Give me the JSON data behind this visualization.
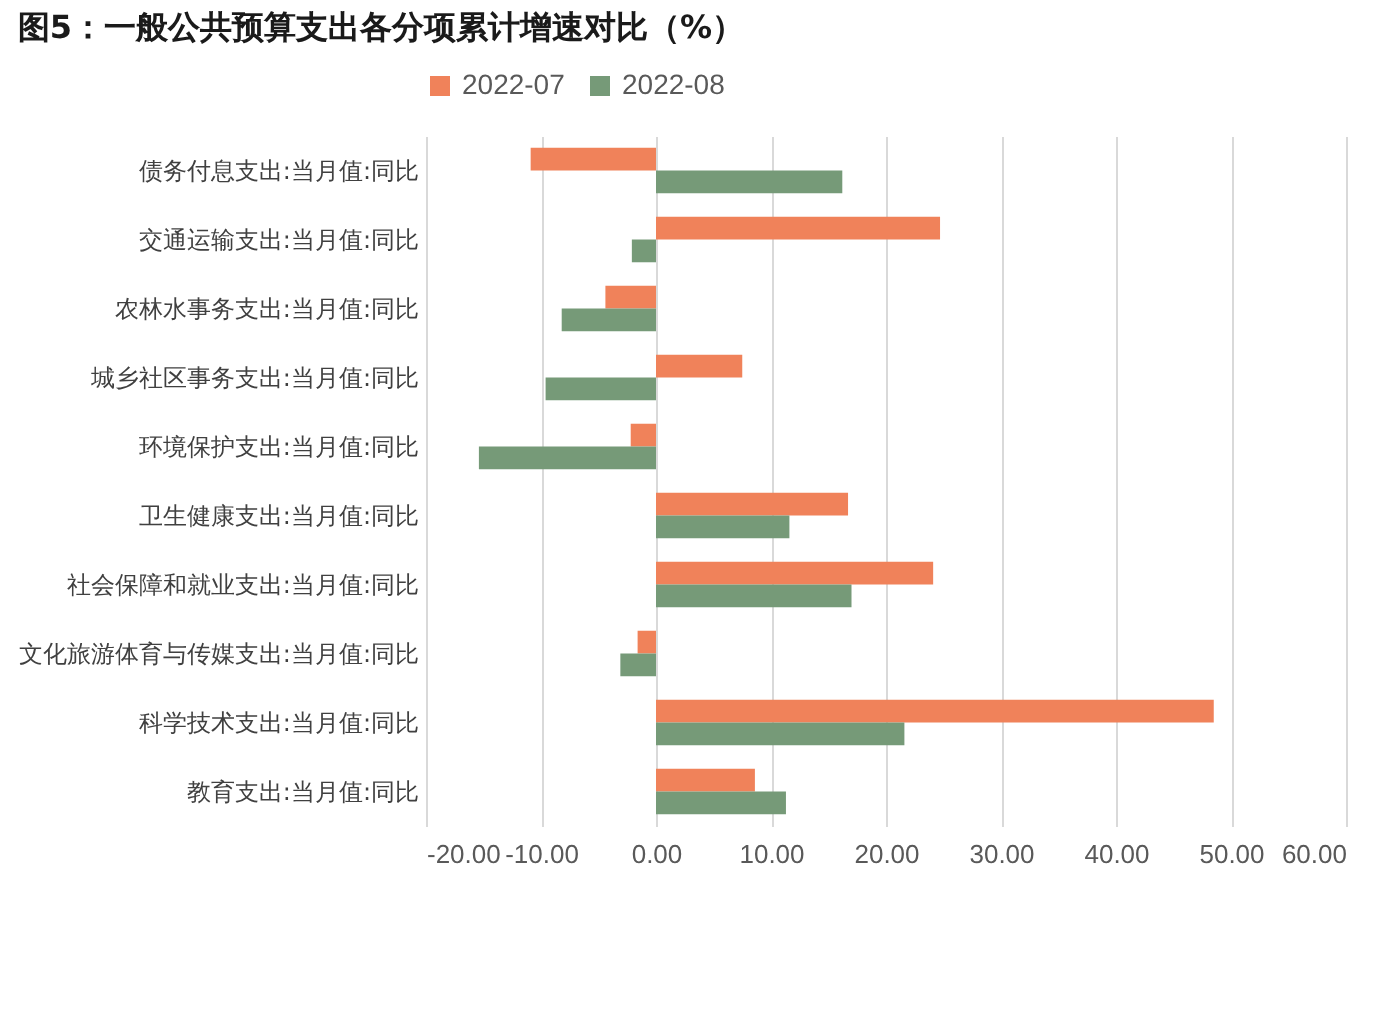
{
  "chart_data": {
    "type": "bar",
    "orientation": "horizontal",
    "title": "图5：一般公共预算支出各分项累计增速对比（%）",
    "categories": [
      "债务付息支出:当月值:同比",
      "交通运输支出:当月值:同比",
      "农林水事务支出:当月值:同比",
      "城乡社区事务支出:当月值:同比",
      "环境保护支出:当月值:同比",
      "卫生健康支出:当月值:同比",
      "社会保障和就业支出:当月值:同比",
      "文化旅游体育与传媒支出:当月值:同比",
      "科学技术支出:当月值:同比",
      "教育支出:当月值:同比"
    ],
    "series": [
      {
        "name": "2022-07",
        "color": "#f0825a",
        "values": [
          -10.9,
          24.7,
          -4.4,
          7.5,
          -2.2,
          16.7,
          24.1,
          -1.6,
          48.5,
          8.6
        ]
      },
      {
        "name": "2022-08",
        "color": "#769a78",
        "values": [
          16.2,
          -2.1,
          -8.2,
          -9.6,
          -15.4,
          11.6,
          17.0,
          -3.1,
          21.6,
          11.3
        ]
      }
    ],
    "xlim": [
      -20,
      60
    ],
    "xticks": [
      {
        "value": -20,
        "label": "-20.00"
      },
      {
        "value": -10,
        "label": "-10.00"
      },
      {
        "value": 0,
        "label": "0.00"
      },
      {
        "value": 10,
        "label": "10.00"
      },
      {
        "value": 20,
        "label": "20.00"
      },
      {
        "value": 30,
        "label": "30.00"
      },
      {
        "value": 40,
        "label": "40.00"
      },
      {
        "value": 50,
        "label": "50.00"
      },
      {
        "value": 60,
        "label": "60.00"
      }
    ],
    "grid": "x",
    "legend": "top"
  }
}
